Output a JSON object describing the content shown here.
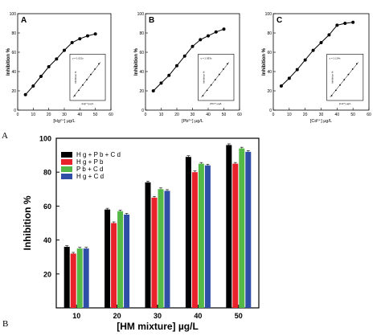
{
  "figure_labels": {
    "part_a": "A",
    "part_b": "B"
  },
  "chart_data": [
    {
      "type": "line",
      "panel": "A",
      "xlabel": "[Hg2+] µg/L",
      "ylabel": "Inhibition %",
      "xlim": [
        0,
        60
      ],
      "ylim": [
        0,
        100
      ],
      "xticks": [
        0,
        10,
        20,
        30,
        40,
        50,
        60
      ],
      "yticks": [
        0,
        20,
        40,
        60,
        80,
        100
      ],
      "x": [
        5,
        10,
        15,
        20,
        25,
        30,
        35,
        40,
        45,
        50
      ],
      "y": [
        16,
        25,
        35,
        45,
        53,
        62,
        70,
        74,
        77,
        79
      ],
      "inset": {
        "xlabel": "[Hg2+] µg/L",
        "ylabel": "Inhibition %",
        "equation": "y = 1.021x"
      }
    },
    {
      "type": "line",
      "panel": "B",
      "xlabel": "[Pb2+] µg/L",
      "ylabel": "Inhibition %",
      "xlim": [
        0,
        60
      ],
      "ylim": [
        0,
        100
      ],
      "xticks": [
        0,
        10,
        20,
        30,
        40,
        50,
        60
      ],
      "yticks": [
        0,
        20,
        40,
        60,
        80,
        100
      ],
      "x": [
        5,
        10,
        15,
        20,
        25,
        30,
        35,
        40,
        45,
        50
      ],
      "y": [
        20,
        28,
        36,
        46,
        56,
        66,
        73,
        77,
        81,
        84
      ],
      "inset": {
        "xlabel": "[Pb2+] µg/L",
        "ylabel": "Inhibition %",
        "equation": "y = 1.053x"
      }
    },
    {
      "type": "line",
      "panel": "C",
      "xlabel": "[Cd2+] µg/L",
      "ylabel": "Inhibition %",
      "xlim": [
        0,
        60
      ],
      "ylim": [
        0,
        100
      ],
      "xticks": [
        0,
        10,
        20,
        30,
        40,
        50,
        60
      ],
      "yticks": [
        0,
        20,
        40,
        60,
        80,
        100
      ],
      "x": [
        5,
        10,
        15,
        20,
        25,
        30,
        35,
        40,
        45,
        50
      ],
      "y": [
        25,
        33,
        42,
        52,
        62,
        70,
        78,
        88,
        90,
        91
      ],
      "inset": {
        "xlabel": "[Cd2+] µg/L",
        "ylabel": "Inhibition %",
        "equation": "y = 1.124x"
      }
    },
    {
      "type": "bar",
      "panel": "B",
      "xlabel": "[HM mixture] µg/L",
      "ylabel": "Inhibition %",
      "categories": [
        "10",
        "20",
        "30",
        "40",
        "50"
      ],
      "ylim": [
        0,
        100
      ],
      "yticks": [
        20,
        40,
        60,
        80,
        100
      ],
      "legend_position": "top-left",
      "series": [
        {
          "name": "Hg+Pb+Cd",
          "color": "#000000",
          "values": [
            36,
            58,
            74,
            89,
            96
          ]
        },
        {
          "name": "Hg+Pb",
          "color": "#e8212a",
          "values": [
            32,
            50,
            65,
            80,
            85
          ]
        },
        {
          "name": "Pb+Cd",
          "color": "#55b947",
          "values": [
            35,
            57,
            70,
            85,
            94
          ]
        },
        {
          "name": "Hg+Cd",
          "color": "#2f4fa6",
          "values": [
            35,
            55,
            69,
            84,
            92
          ]
        }
      ]
    }
  ]
}
